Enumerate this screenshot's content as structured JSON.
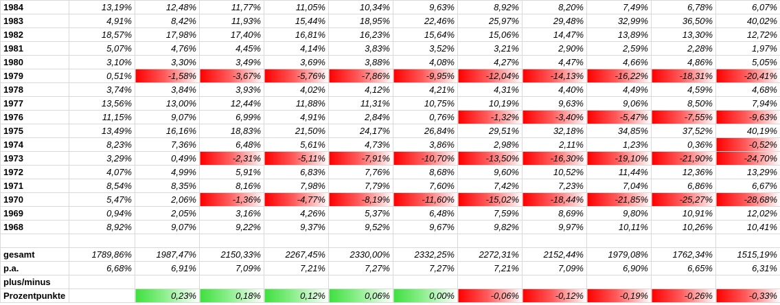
{
  "sheet": {
    "rows": [
      {
        "label": "1984",
        "values": [
          "13,19%",
          "12,48%",
          "11,77%",
          "11,05%",
          "10,34%",
          "9,63%",
          "8,92%",
          "8,20%",
          "7,49%",
          "6,78%",
          "6,07%"
        ]
      },
      {
        "label": "1983",
        "values": [
          "4,91%",
          "8,42%",
          "11,93%",
          "15,44%",
          "18,95%",
          "22,46%",
          "25,97%",
          "29,48%",
          "32,99%",
          "36,50%",
          "40,02%"
        ]
      },
      {
        "label": "1982",
        "values": [
          "18,57%",
          "17,98%",
          "17,40%",
          "16,81%",
          "16,23%",
          "15,64%",
          "15,06%",
          "14,47%",
          "13,89%",
          "13,30%",
          "12,72%"
        ]
      },
      {
        "label": "1981",
        "values": [
          "5,07%",
          "4,76%",
          "4,45%",
          "4,14%",
          "3,83%",
          "3,52%",
          "3,21%",
          "2,90%",
          "2,59%",
          "2,28%",
          "1,97%"
        ]
      },
      {
        "label": "1980",
        "values": [
          "3,10%",
          "3,30%",
          "3,49%",
          "3,69%",
          "3,88%",
          "4,08%",
          "4,27%",
          "4,47%",
          "4,66%",
          "4,86%",
          "5,05%"
        ]
      },
      {
        "label": "1979",
        "values": [
          "0,51%",
          "-1,58%",
          "-3,67%",
          "-5,76%",
          "-7,86%",
          "-9,95%",
          "-12,04%",
          "-14,13%",
          "-16,22%",
          "-18,31%",
          "-20,41%"
        ]
      },
      {
        "label": "1978",
        "values": [
          "3,74%",
          "3,84%",
          "3,93%",
          "4,02%",
          "4,12%",
          "4,21%",
          "4,31%",
          "4,40%",
          "4,49%",
          "4,59%",
          "4,68%"
        ]
      },
      {
        "label": "1977",
        "values": [
          "13,56%",
          "13,00%",
          "12,44%",
          "11,88%",
          "11,31%",
          "10,75%",
          "10,19%",
          "9,63%",
          "9,06%",
          "8,50%",
          "7,94%"
        ]
      },
      {
        "label": "1976",
        "values": [
          "11,15%",
          "9,07%",
          "6,99%",
          "4,91%",
          "2,84%",
          "0,76%",
          "-1,32%",
          "-3,40%",
          "-5,47%",
          "-7,55%",
          "-9,63%"
        ]
      },
      {
        "label": "1975",
        "values": [
          "13,49%",
          "16,16%",
          "18,83%",
          "21,50%",
          "24,17%",
          "26,84%",
          "29,51%",
          "32,18%",
          "34,85%",
          "37,52%",
          "40,19%"
        ]
      },
      {
        "label": "1974",
        "values": [
          "8,23%",
          "7,36%",
          "6,48%",
          "5,61%",
          "4,73%",
          "3,86%",
          "2,98%",
          "2,11%",
          "1,23%",
          "0,36%",
          "-0,52%"
        ]
      },
      {
        "label": "1973",
        "values": [
          "3,29%",
          "0,49%",
          "-2,31%",
          "-5,11%",
          "-7,91%",
          "-10,70%",
          "-13,50%",
          "-16,30%",
          "-19,10%",
          "-21,90%",
          "-24,70%"
        ]
      },
      {
        "label": "1972",
        "values": [
          "4,07%",
          "4,99%",
          "5,91%",
          "6,83%",
          "7,76%",
          "8,68%",
          "9,60%",
          "10,52%",
          "11,44%",
          "12,36%",
          "13,29%"
        ]
      },
      {
        "label": "1971",
        "values": [
          "8,54%",
          "8,35%",
          "8,16%",
          "7,98%",
          "7,79%",
          "7,60%",
          "7,42%",
          "7,23%",
          "7,04%",
          "6,86%",
          "6,67%"
        ]
      },
      {
        "label": "1970",
        "values": [
          "5,47%",
          "2,06%",
          "-1,36%",
          "-4,77%",
          "-8,19%",
          "-11,60%",
          "-15,02%",
          "-18,44%",
          "-21,85%",
          "-25,27%",
          "-28,68%"
        ]
      },
      {
        "label": "1969",
        "values": [
          "0,94%",
          "2,05%",
          "3,16%",
          "4,26%",
          "5,37%",
          "6,48%",
          "7,59%",
          "8,69%",
          "9,80%",
          "10,91%",
          "12,02%"
        ]
      },
      {
        "label": "1968",
        "values": [
          "8,92%",
          "9,07%",
          "9,22%",
          "9,37%",
          "9,52%",
          "9,67%",
          "9,82%",
          "9,97%",
          "10,11%",
          "10,26%",
          "10,41%"
        ]
      }
    ],
    "gesamt": {
      "label": "gesamt",
      "values": [
        "1789,86%",
        "1987,47%",
        "2150,33%",
        "2267,45%",
        "2330,00%",
        "2332,25%",
        "2272,31%",
        "2152,44%",
        "1979,08%",
        "1762,34%",
        "1515,19%"
      ]
    },
    "pa": {
      "label": "p.a.",
      "values": [
        "6,68%",
        "6,91%",
        "7,09%",
        "7,21%",
        "7,27%",
        "7,27%",
        "7,21%",
        "7,09%",
        "6,90%",
        "6,65%",
        "6,31%"
      ]
    },
    "plusminus": {
      "label": "plus/minus"
    },
    "prozentpunkte": {
      "label": "Prozentpunkte",
      "values": [
        "",
        "0,23%",
        "0,18%",
        "0,12%",
        "0,06%",
        "0,00%",
        "-0,06%",
        "-0,12%",
        "-0,19%",
        "-0,26%",
        "-0,33%"
      ]
    }
  },
  "colors": {
    "negative_fill": "#ff0000",
    "positive_fill": "#3ee03e",
    "gridline": "#d9d9d9"
  }
}
